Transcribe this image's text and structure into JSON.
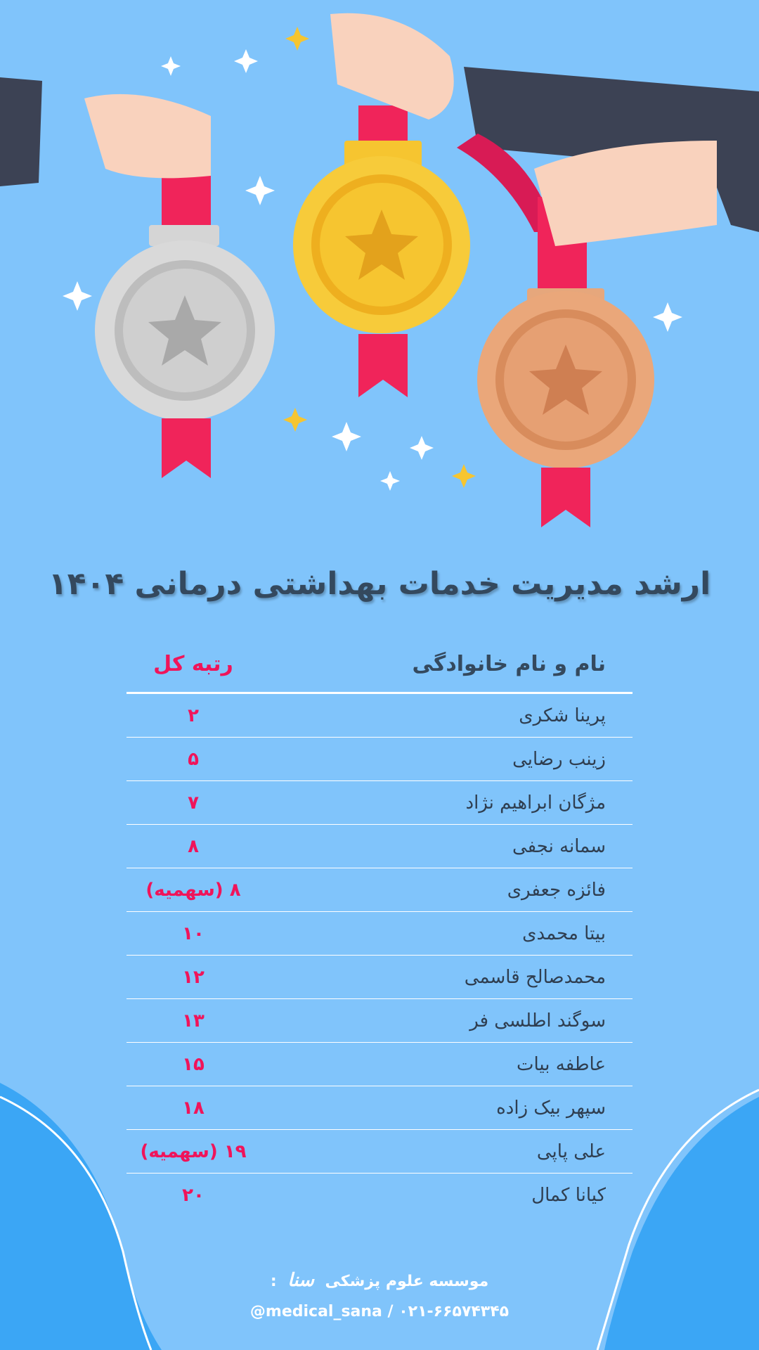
{
  "title": "ارشد مدیریت خدمات بهداشتی درمانی ۱۴۰۴",
  "table": {
    "headers": {
      "name": "نام و نام خانوادگی",
      "rank": "رتبه کل"
    },
    "rows": [
      {
        "name": "پرینا شکری",
        "rank": "۲"
      },
      {
        "name": "زینب رضایی",
        "rank": "۵"
      },
      {
        "name": "مژگان ابراهیم نژاد",
        "rank": "۷"
      },
      {
        "name": "سمانه نجفی",
        "rank": "۸"
      },
      {
        "name": "فائزه جعفری",
        "rank": "۸ (سهمیه)"
      },
      {
        "name": "بیتا محمدی",
        "rank": "۱۰"
      },
      {
        "name": "محمدصالح قاسمی",
        "rank": "۱۲"
      },
      {
        "name": "سوگند اطلسی فر",
        "rank": "۱۳"
      },
      {
        "name": "عاطفه بیات",
        "rank": "۱۵"
      },
      {
        "name": "سپهر بیک زاده",
        "rank": "۱۸"
      },
      {
        "name": "علی پاپی",
        "rank": "۱۹ (سهمیه)"
      },
      {
        "name": "کیانا کمال",
        "rank": "۲۰"
      }
    ]
  },
  "footer": {
    "institute": "موسسه علوم پزشکی",
    "logo_text": "سنا",
    "colon": ":",
    "contact": "@medical_sana / ۰۲۱-۶۶۵۷۴۳۴۵"
  },
  "colors": {
    "background": "#80c4fb",
    "title": "#34495e",
    "rank": "#f0145a",
    "gold": "#f6c530",
    "silver": "#c9c9c9",
    "bronze": "#e09a6b",
    "ribbon": "#f0245a"
  }
}
